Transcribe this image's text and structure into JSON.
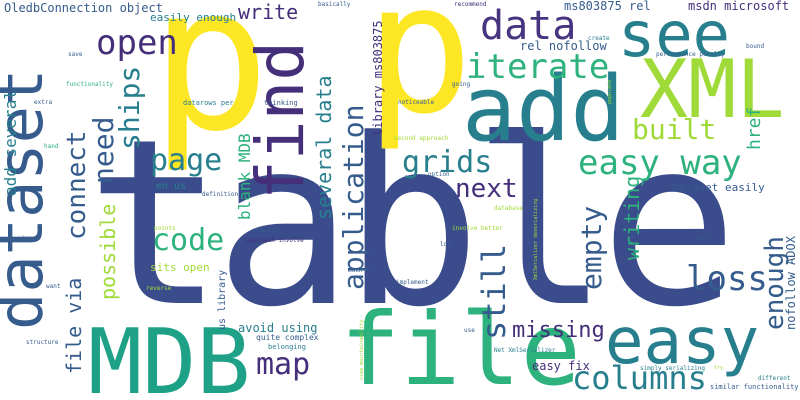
{
  "palette": {
    "navy": "#3b4c8c",
    "dark": "#452f7a",
    "purple": "#463480",
    "blue": "#365c8d",
    "teal": "#277f8e",
    "green": "#1fa187",
    "lime": "#a0da39",
    "yellow": "#fde725",
    "aqua": "#2db27d",
    "violet": "#482878"
  },
  "words": [
    "table",
    "p",
    "p",
    "file",
    "MDB",
    "dataset",
    "add",
    "XML",
    "find",
    "see",
    "easy",
    "data",
    "easy way",
    "open",
    "iterate",
    "need",
    "connect",
    "ships",
    "page",
    "grids",
    "next",
    "code",
    "application",
    "built",
    "columns",
    "enough",
    "loss",
    "empty",
    "still",
    "map",
    "missing",
    "write",
    "several data",
    "blank MDB",
    "writing",
    "possible",
    "file via",
    "add several",
    "href",
    "nofollow ADOX",
    "ms803875 rel",
    "msdn microsoft",
    "library ms803875",
    "rel nofollow",
    "OledbConnection object",
    "easily enough",
    "en us",
    "dataset easily",
    "sits open",
    "us library",
    "avoid using",
    "easy fix",
    "quite complex",
    "belonging",
    "similar functionality",
    "different",
    "simply serializing",
    "datarows per",
    "thinking",
    "basically",
    "recommend",
    "create",
    "save",
    "functionality",
    "extra",
    "hand",
    "going",
    "noticeable",
    "performance penalty",
    "populate",
    "bound",
    "second approach",
    "option",
    "definition",
    "snapshot",
    "approach involve",
    "involve better",
    "lot",
    "much",
    "implement",
    "using",
    "want",
    "reverse",
    "points",
    "structure",
    "use",
    "Net XmlSerializer",
    "XmlSerializer deserializing",
    "view maintainability",
    "database",
    "will",
    "try"
  ]
}
